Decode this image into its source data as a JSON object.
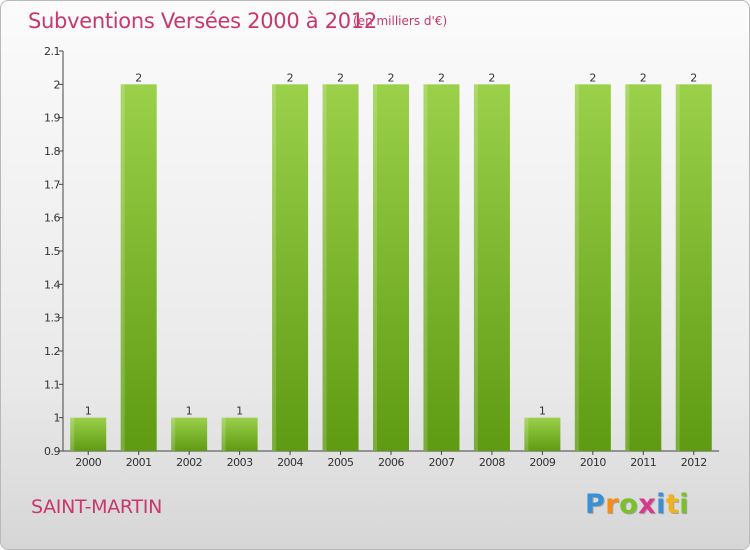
{
  "header": {
    "title": "Subventions Versées 2000 à 2012",
    "unit": "(en milliers d'€)"
  },
  "footer": {
    "commune": "SAINT-MARTIN",
    "logo_letters": [
      "P",
      "r",
      "o",
      "x",
      "i",
      "t",
      "i"
    ]
  },
  "colors": {
    "title": "#c8376e",
    "bar_light": "#9bd04a",
    "bar_dark": "#5e9b12",
    "logo": [
      "#3a8fd6",
      "#f28c1a",
      "#7bbf2a",
      "#d63a8c",
      "#3a8fd6",
      "#f2b21a",
      "#7bbf2a"
    ]
  },
  "chart_data": {
    "type": "bar",
    "title": "Subventions Versées 2000 à 2012",
    "ylabel": "",
    "xlabel": "",
    "categories": [
      "2000",
      "2001",
      "2002",
      "2003",
      "2004",
      "2005",
      "2006",
      "2007",
      "2008",
      "2009",
      "2010",
      "2011",
      "2012"
    ],
    "values": [
      1,
      2,
      1,
      1,
      2,
      2,
      2,
      2,
      2,
      1,
      2,
      2,
      2
    ],
    "data_labels": [
      "1",
      "2",
      "1",
      "1",
      "2",
      "2",
      "2",
      "2",
      "2",
      "1",
      "2",
      "2",
      "2"
    ],
    "ylim": [
      0.9,
      2.1
    ],
    "yticks": [
      "0.9",
      "1",
      "1.1",
      "1.2",
      "1.3",
      "1.4",
      "1.5",
      "1.6",
      "1.7",
      "1.8",
      "1.9",
      "2",
      "2.1"
    ],
    "grid": false,
    "legend": "none"
  }
}
